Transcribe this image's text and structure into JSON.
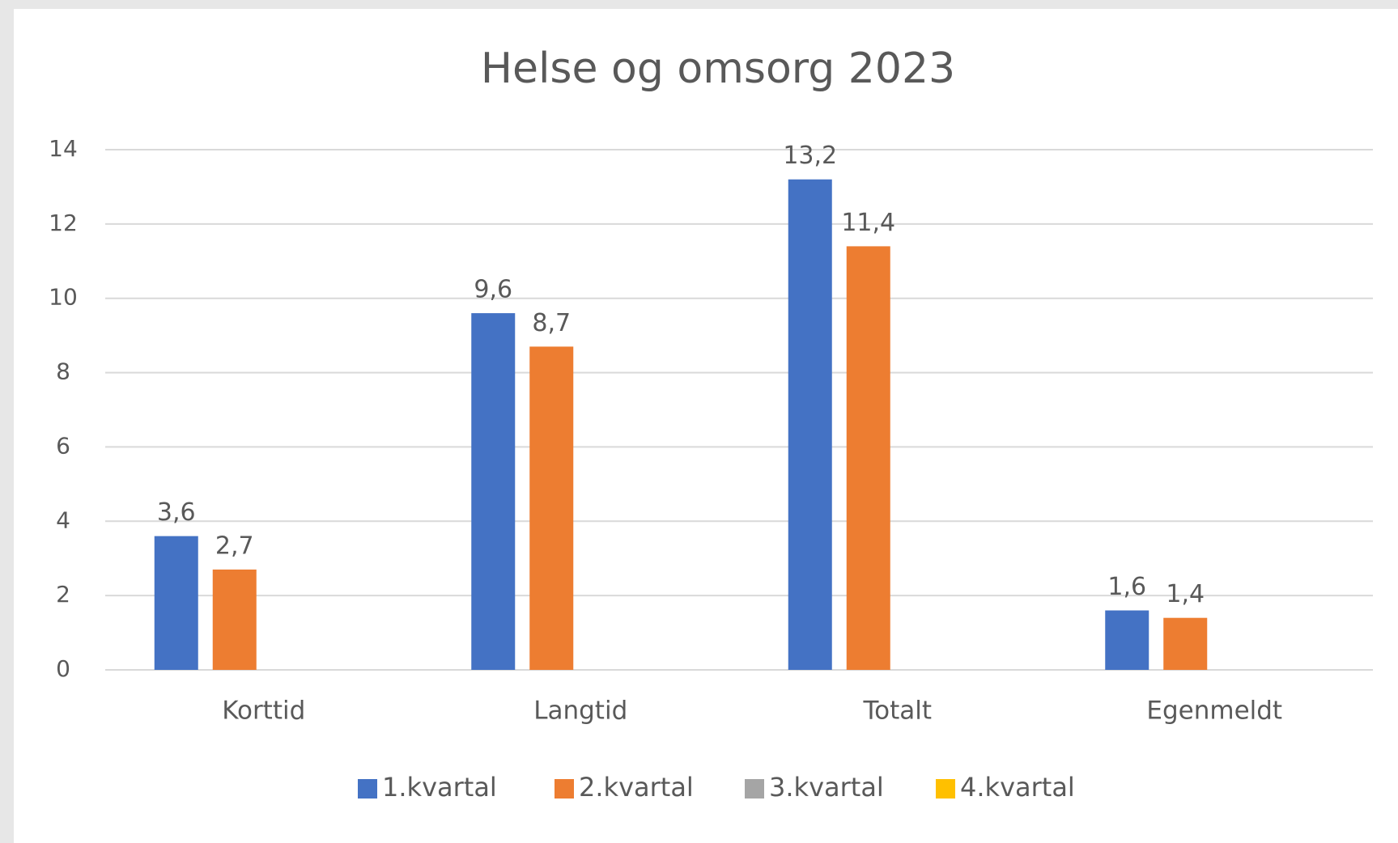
{
  "chart_data": {
    "type": "bar",
    "title": "Helse og omsorg 2023",
    "categories": [
      "Korttid",
      "Langtid",
      "Totalt",
      "Egenmeldt"
    ],
    "series": [
      {
        "name": "1.kvartal",
        "color": "#4472c4",
        "values": [
          3.6,
          9.6,
          13.2,
          1.6
        ],
        "value_labels": [
          "3,6",
          "9,6",
          "13,2",
          "1,6"
        ]
      },
      {
        "name": "2.kvartal",
        "color": "#ed7d31",
        "values": [
          2.7,
          8.7,
          11.4,
          1.4
        ],
        "value_labels": [
          "2,7",
          "8,7",
          "11,4",
          "1,4"
        ]
      },
      {
        "name": "3.kvartal",
        "color": "#a5a5a5",
        "values": [
          null,
          null,
          null,
          null
        ]
      },
      {
        "name": "4.kvartal",
        "color": "#ffc000",
        "values": [
          null,
          null,
          null,
          null
        ]
      }
    ],
    "ylim": [
      0,
      14
    ],
    "yticks": [
      0,
      2,
      4,
      6,
      8,
      10,
      12,
      14
    ],
    "grid": true,
    "legend": "bottom"
  }
}
